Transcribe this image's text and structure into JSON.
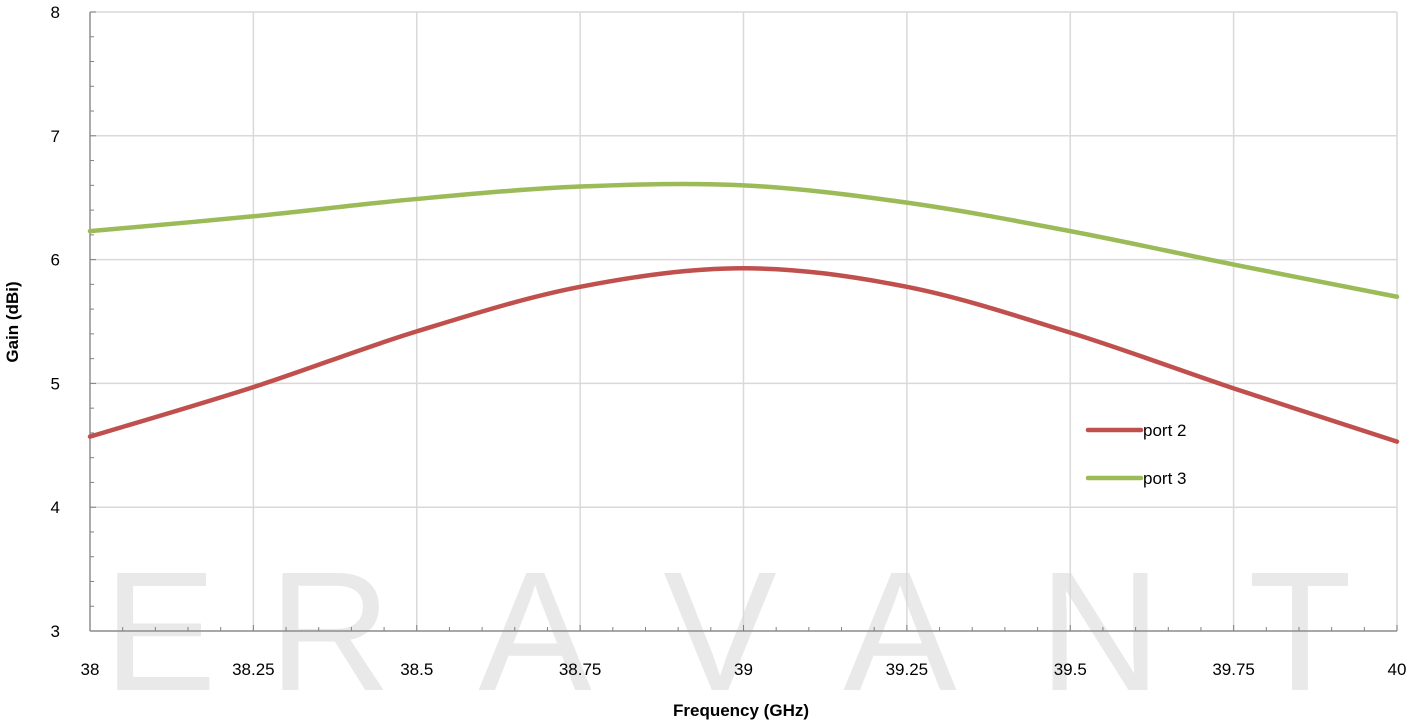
{
  "chart_data": {
    "type": "line",
    "xlabel": "Frequency (GHz)",
    "ylabel": "Gain (dBi)",
    "xlim": [
      38,
      40
    ],
    "ylim": [
      3,
      8
    ],
    "x_ticks": [
      "38",
      "38.25",
      "38.5",
      "38.75",
      "39",
      "39.25",
      "39.5",
      "39.75",
      "40"
    ],
    "y_ticks": [
      "3",
      "4",
      "5",
      "6",
      "7",
      "8"
    ],
    "grid": true,
    "legend_position": "right",
    "series": [
      {
        "name": "port 2",
        "color": "#c0504d",
        "x": [
          38,
          38.25,
          38.5,
          38.75,
          39,
          39.25,
          39.5,
          39.75,
          40
        ],
        "y": [
          4.57,
          4.97,
          5.42,
          5.78,
          5.93,
          5.78,
          5.41,
          4.96,
          4.53
        ]
      },
      {
        "name": "port 3",
        "color": "#9bbb59",
        "x": [
          38,
          38.25,
          38.5,
          38.75,
          39,
          39.25,
          39.5,
          39.75,
          40
        ],
        "y": [
          6.23,
          6.35,
          6.49,
          6.59,
          6.6,
          6.46,
          6.23,
          5.96,
          5.7
        ]
      }
    ]
  },
  "watermark": {
    "text": "ERAVANT",
    "color": "#e9e9e9"
  }
}
